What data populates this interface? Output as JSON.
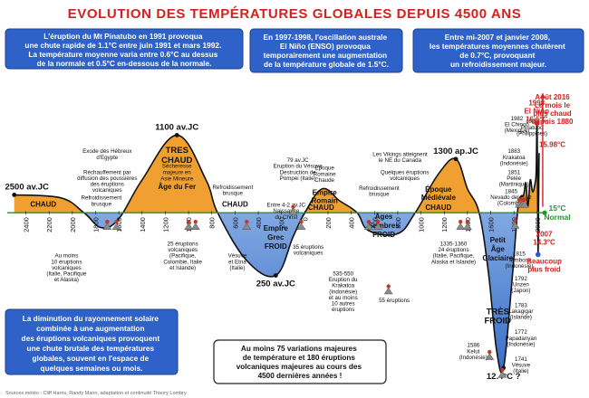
{
  "title": "EVOLUTION DES TEMPÉRATURES GLOBALES DEPUIS 4500 ANS",
  "info_boxes": [
    {
      "lines": [
        "L'éruption du Mt Pinatubo en 1991 provoqua",
        "une chute rapide de 1.1°C entre juin 1991 et mars 1992.",
        "La température moyenne varia entre 0.6°C au dessus",
        "de la normale et 0.5°C en-dessous de la normale."
      ]
    },
    {
      "lines": [
        "En 1997-1998, l'oscillation australe",
        "El Niño (ENSO) provoqua",
        "temporairement une augmentation",
        "de la température globale de 1.5°C."
      ]
    },
    {
      "lines": [
        "Entre mi-2007 et janvier 2008,",
        "les températures moyennes chutèrent",
        "de 0.7°C, provoquant",
        "un refroidissement majeur."
      ]
    },
    {
      "lines": [
        "La diminution du rayonnement solaire",
        "combinée à une augmentation",
        "des éruptions volcaniques provoquent",
        "une chute brutale des températures",
        "globales, souvent en l'espace de",
        "quelques semaines ou mois."
      ]
    }
  ],
  "bottom_box": {
    "lines": [
      "Au moins 75 variations majeures",
      "de température et 180 éruptions",
      "volcaniques majeures au cours des",
      "4500 dernières années !"
    ]
  },
  "source": "Sources météo : Cliff Harris, Randy Mann, adaptation et continuité Thierry Lombry",
  "chart_data": {
    "type": "area",
    "xlabel": "",
    "ylabel": "",
    "x_ticks": [
      "2400",
      "2200",
      "2000",
      "1800",
      "1600",
      "1400",
      "1200",
      "1000",
      "800",
      "600",
      "400",
      "200",
      "0",
      "200",
      "400",
      "600",
      "800",
      "1000",
      "1200",
      "1400",
      "1600",
      "1800",
      "2000"
    ],
    "baseline_label": "15°C Normal",
    "curve": [
      {
        "year": -2500,
        "anomaly": 0.3
      },
      {
        "year": -2100,
        "anomaly": 0.25
      },
      {
        "year": -1900,
        "anomaly": 0.0
      },
      {
        "year": -1750,
        "anomaly": -0.25
      },
      {
        "year": -1600,
        "anomaly": -0.1
      },
      {
        "year": -1400,
        "anomaly": 0.55
      },
      {
        "year": -1100,
        "anomaly": 1.3
      },
      {
        "year": -850,
        "anomaly": 0.55
      },
      {
        "year": -750,
        "anomaly": 0.0
      },
      {
        "year": -500,
        "anomaly": -0.8
      },
      {
        "year": -250,
        "anomaly": -1.05
      },
      {
        "year": -100,
        "anomaly": -0.4
      },
      {
        "year": 0,
        "anomaly": 0.0
      },
      {
        "year": 150,
        "anomaly": 0.4
      },
      {
        "year": 300,
        "anomaly": 0.2
      },
      {
        "year": 450,
        "anomaly": 0.0
      },
      {
        "year": 550,
        "anomaly": -0.3
      },
      {
        "year": 800,
        "anomaly": -0.35
      },
      {
        "year": 950,
        "anomaly": 0.0
      },
      {
        "year": 1150,
        "anomaly": 0.65
      },
      {
        "year": 1300,
        "anomaly": 0.9
      },
      {
        "year": 1400,
        "anomaly": 0.4
      },
      {
        "year": 1500,
        "anomaly": 0.0
      },
      {
        "year": 1580,
        "anomaly": -1.0
      },
      {
        "year": 1650,
        "anomaly": -2.3
      },
      {
        "year": 1710,
        "anomaly": -2.6
      },
      {
        "year": 1780,
        "anomaly": -1.2
      },
      {
        "year": 1830,
        "anomaly": 0.0
      },
      {
        "year": 1850,
        "anomaly": 0.25
      },
      {
        "year": 1883,
        "anomaly": 0.3
      },
      {
        "year": 1902,
        "anomaly": 0.5
      },
      {
        "year": 1920,
        "anomaly": 0.1
      },
      {
        "year": 1940,
        "anomaly": 0.55
      },
      {
        "year": 1960,
        "anomaly": 0.35
      },
      {
        "year": 1982,
        "anomaly": 0.5
      },
      {
        "year": 1991,
        "anomaly": 0.7
      },
      {
        "year": 1998,
        "anomaly": 1.5
      },
      {
        "year": 2003,
        "anomaly": 0.5
      },
      {
        "year": 2007,
        "anomaly": -0.7
      },
      {
        "year": 2012,
        "anomaly": 0.2
      },
      {
        "year": 2016,
        "anomaly": 1.0
      }
    ],
    "peak_labels": [
      {
        "text": "2500 av.JC",
        "year": -2500,
        "anomaly": 0.3
      },
      {
        "text": "1100 av.JC",
        "year": -1100,
        "anomaly": 1.3
      },
      {
        "text": "250 av.JC",
        "year": -250,
        "anomaly": -1.05
      },
      {
        "text": "1300 ap.JC",
        "year": 1300,
        "anomaly": 0.9
      },
      {
        "text": "12.4°C ?",
        "year": 1710,
        "anomaly": -2.6
      }
    ],
    "warm_eras": [
      {
        "lines": [
          "CHAUD"
        ],
        "year": -2250,
        "anomaly": 0.1
      },
      {
        "lines": [
          "TRES",
          "CHAUD"
        ],
        "year": -1100,
        "anomaly": 1.0
      },
      {
        "lines": [
          "Âge du Fer"
        ],
        "year": -1100,
        "anomaly": 0.4
      },
      {
        "lines": [
          "CHAUD"
        ],
        "year": -600,
        "anomaly": 0.1
      },
      {
        "lines": [
          "Empire",
          "Romain"
        ],
        "year": 170,
        "anomaly": 0.3
      },
      {
        "lines": [
          "CHAUD"
        ],
        "year": 140,
        "anomaly": 0.05
      },
      {
        "lines": [
          "Époque",
          "Médiévale"
        ],
        "year": 1150,
        "anomaly": 0.35
      },
      {
        "lines": [
          "CHAUD"
        ],
        "year": 1150,
        "anomaly": 0.05
      }
    ],
    "warm_notes": [
      {
        "lines": [
          "Sécheresse",
          "majeure en",
          "Asie Mineure"
        ],
        "year": -1100,
        "anomaly": 0.75
      }
    ],
    "cold_eras": [
      {
        "lines": [
          "Empire",
          "Grec",
          "FROID"
        ],
        "year": -250,
        "anomaly": -0.3
      },
      {
        "lines": [
          "Âges",
          "Sombres",
          "FROID"
        ],
        "year": 680,
        "anomaly": -0.1
      },
      {
        "lines": [
          "Petit",
          "Âge",
          "Glaciaire"
        ],
        "year": 1660,
        "anomaly": -0.5
      },
      {
        "lines": [
          "TRÈS",
          "FROID"
        ],
        "year": 1660,
        "anomaly": -1.7
      }
    ],
    "era_colors": {
      "warm": "#f0a030",
      "cold": "#a8c8f0",
      "cold_dark": "#3a6fc8"
    },
    "annotations": [
      {
        "lines": [
          "Exode des Hébreux",
          "d'Egypte"
        ],
        "year": -1700,
        "anomaly": 1.0
      },
      {
        "lines": [
          "Réchauffement par",
          "diffusion des poussières",
          "des éruptions",
          "volcaniques"
        ],
        "year": -1700,
        "anomaly": 0.65
      },
      {
        "lines": [
          "Refroidissement",
          "brusque"
        ],
        "year": -1750,
        "anomaly": 0.22
      },
      {
        "lines": [
          "Refroidissement",
          "brusque"
        ],
        "year": -620,
        "anomaly": 0.4
      },
      {
        "lines": [
          "79 av.JC",
          "Eruption du Vésuve",
          "Destruction de",
          "Pompei (Italie)"
        ],
        "year": -60,
        "anomaly": 0.85
      },
      {
        "lines": [
          "Epoque",
          "Romaine",
          "Chaude"
        ],
        "year": 170,
        "anomaly": 0.72
      },
      {
        "lines": [
          "Entre 4-2 av.JC",
          "Naissance",
          "du Christ"
        ],
        "year": -160,
        "anomaly": 0.1
      },
      {
        "lines": [
          "Les Vikings atteignent",
          "le NE du Canada"
        ],
        "year": 820,
        "anomaly": 0.95
      },
      {
        "lines": [
          "Quelques éruptions",
          "volcaniques"
        ],
        "year": 860,
        "anomaly": 0.65
      },
      {
        "lines": [
          "Refroidissement",
          "brusque"
        ],
        "year": 640,
        "anomaly": 0.38
      },
      {
        "lines": [
          "Au moins",
          "10 éruptions",
          "volcaniques",
          "(Italie, Pacifique",
          "et Alaska)"
        ],
        "year": -2050,
        "anomaly": -0.75
      },
      {
        "lines": [
          "25 éruptions",
          "volcaniques",
          "(Pacifique,",
          "Colombie, Italie",
          "et Islande)"
        ],
        "year": -1050,
        "anomaly": -0.55
      },
      {
        "lines": [
          "Vésuve",
          "et Etna",
          "(Italie)"
        ],
        "year": -580,
        "anomaly": -0.75
      },
      {
        "lines": [
          "35 éruptions",
          "volcaniques"
        ],
        "year": 30,
        "anomaly": -0.6
      },
      {
        "lines": [
          "535-550",
          "Eruption du",
          "Krakatoa",
          "(Indonésie)",
          "et au moins",
          "10 autres",
          "éruptions"
        ],
        "year": 330,
        "anomaly": -1.05
      },
      {
        "lines": [
          "55 éruptions"
        ],
        "year": 770,
        "anomaly": -1.5
      },
      {
        "lines": [
          "1335-1360",
          "24 éruptions",
          "(Italie, Pacifique,",
          "Alaska et Islande)"
        ],
        "year": 1280,
        "anomaly": -0.55
      },
      {
        "lines": [
          "1586",
          "Kelut",
          "(Indonésie)"
        ],
        "year": 1450,
        "anomaly": -2.25
      },
      {
        "lines": [
          "1982",
          "El Chinon",
          "(Mexique)"
        ],
        "year": 1825,
        "anomaly": 1.55
      },
      {
        "lines": [
          "1991",
          "Pinatubo",
          "(Philippines)"
        ],
        "year": 1955,
        "anomaly": 1.5
      },
      {
        "lines": [
          "1883",
          "Krakatoa",
          "(Indonésie)"
        ],
        "year": 1800,
        "anomaly": 1.0
      },
      {
        "lines": [
          "1851",
          "Pelée",
          "(Martinique)"
        ],
        "year": 1800,
        "anomaly": 0.65
      },
      {
        "lines": [
          "1845",
          "Nevado del Ruiz",
          "(Colombie)"
        ],
        "year": 1775,
        "anomaly": 0.33
      },
      {
        "lines": [
          "1815",
          "Tambora",
          "(Indonésie)"
        ],
        "year": 1845,
        "anomaly": -0.72
      },
      {
        "lines": [
          "1792",
          "Unzen",
          "(Japon)"
        ],
        "year": 1860,
        "anomaly": -1.13
      },
      {
        "lines": [
          "1783",
          "Lakagigar",
          "(Islande)"
        ],
        "year": 1860,
        "anomaly": -1.58
      },
      {
        "lines": [
          "1772",
          "Papadanyan",
          "(Indonésie)"
        ],
        "year": 1860,
        "anomaly": -2.03
      },
      {
        "lines": [
          "1741",
          "Vésuve",
          "(Italie)"
        ],
        "year": 1860,
        "anomaly": -2.48
      }
    ],
    "volcanoes": [
      {
        "year": -1700,
        "anomaly": -0.22
      },
      {
        "year": -1620,
        "anomaly": -0.22
      },
      {
        "year": -1000,
        "anomaly": -0.22
      },
      {
        "year": -940,
        "anomaly": -0.22
      },
      {
        "year": -500,
        "anomaly": -0.22
      },
      {
        "year": -100,
        "anomaly": 0.03
      },
      {
        "year": -30,
        "anomaly": -0.22
      },
      {
        "year": 550,
        "anomaly": -0.22
      },
      {
        "year": 630,
        "anomaly": -0.22
      },
      {
        "year": 720,
        "anomaly": -1.3
      },
      {
        "year": 1340,
        "anomaly": -0.22
      },
      {
        "year": 1400,
        "anomaly": -0.22
      },
      {
        "year": 1590,
        "anomaly": -2.4
      },
      {
        "year": 1700,
        "anomaly": -2.7
      },
      {
        "year": 1810,
        "anomaly": -0.2
      },
      {
        "year": 1845,
        "anomaly": 0.15
      },
      {
        "year": 1870,
        "anomaly": 0.15
      },
      {
        "year": 1890,
        "anomaly": 0.15
      }
    ],
    "events": [
      {
        "lines": [
          "1998",
          "El Niño",
          "16.5°C"
        ],
        "color": "#d32020",
        "year": 1995,
        "anomaly": 1.8
      },
      {
        "lines": [
          "Août 2016",
          "Le mois le",
          "plus chaud",
          "depuis 1880"
        ],
        "color": "#d32020",
        "year": 2130,
        "anomaly": 1.9
      },
      {
        "lines": [
          "15.98°C"
        ],
        "color": "#d32020",
        "year": 2130,
        "anomaly": 1.1
      },
      {
        "lines": [
          "2007",
          "14.3°C"
        ],
        "color": "#1f5fd0",
        "year": 2060,
        "anomaly": -0.4
      },
      {
        "lines": [
          "Beaucoup",
          "plus froid"
        ],
        "color": "#1f5fd0",
        "year": 2060,
        "anomaly": -0.85
      }
    ],
    "y_range": [
      -2.8,
      2.2
    ],
    "x_range": [
      -2560,
      2040
    ],
    "grid": false,
    "legend": "none"
  }
}
